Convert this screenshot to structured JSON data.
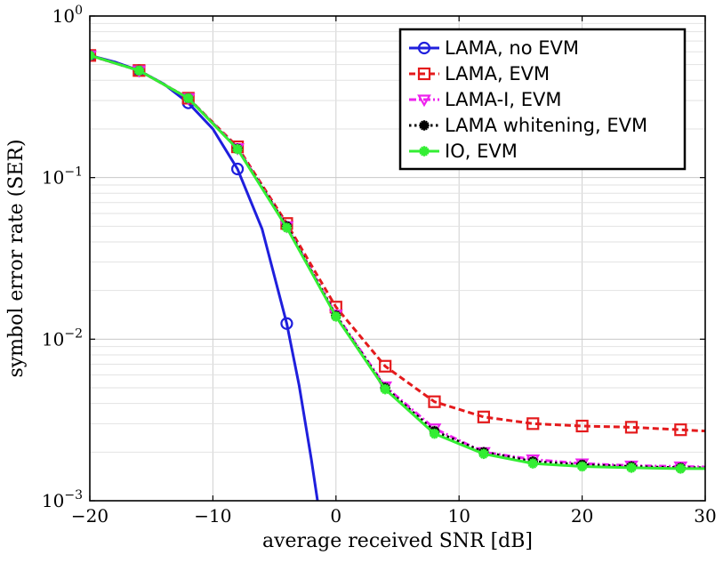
{
  "chart_data": {
    "type": "line",
    "title": "",
    "xlabel": "average received SNR [dB]",
    "ylabel": "symbol error rate (SER)",
    "xlim": [
      -20,
      30
    ],
    "ylim": [
      0.001,
      1
    ],
    "yscale": "log",
    "grid": true,
    "legend_position": "top-right",
    "x_ticks": [
      -20,
      -10,
      0,
      10,
      20,
      30
    ],
    "x_tick_labels": [
      "−20",
      "−10",
      "0",
      "10",
      "20",
      "30"
    ],
    "y_tick_labels": [
      {
        "base": "10",
        "exp": "0"
      },
      {
        "base": "10",
        "exp": "−1"
      },
      {
        "base": "10",
        "exp": "−2"
      },
      {
        "base": "10",
        "exp": "−3"
      }
    ],
    "series": [
      {
        "name": "LAMA, no EVM",
        "color": "#1f1fdd",
        "dash": "solid",
        "marker": "circle",
        "x": [
          -20,
          -18,
          -16,
          -14,
          -12,
          -10,
          -8,
          -6,
          -4,
          -3,
          -2,
          -1.5
        ],
        "y": [
          0.57,
          0.52,
          0.46,
          0.38,
          0.29,
          0.2,
          0.113,
          0.048,
          0.0125,
          0.0052,
          0.0018,
          0.001
        ],
        "marker_x": [
          -20,
          -16,
          -12,
          -8,
          -4
        ],
        "marker_y": [
          0.57,
          0.46,
          0.29,
          0.113,
          0.0125
        ]
      },
      {
        "name": "LAMA, EVM",
        "color": "#e41a1c",
        "dash": "dashed",
        "marker": "square",
        "x": [
          -20,
          -16,
          -12,
          -8,
          -4,
          0,
          4,
          8,
          12,
          16,
          20,
          24,
          28,
          30
        ],
        "y": [
          0.57,
          0.46,
          0.31,
          0.155,
          0.052,
          0.0158,
          0.0068,
          0.0041,
          0.0033,
          0.003,
          0.0029,
          0.00285,
          0.00275,
          0.0027
        ],
        "marker_x": [
          -20,
          -16,
          -12,
          -8,
          -4,
          0,
          4,
          8,
          12,
          16,
          20,
          24,
          28
        ],
        "marker_y": [
          0.57,
          0.46,
          0.31,
          0.155,
          0.052,
          0.0158,
          0.0068,
          0.0041,
          0.0033,
          0.003,
          0.0029,
          0.00285,
          0.00275
        ]
      },
      {
        "name": "LAMA-I, EVM",
        "color": "#ee22ee",
        "dash": "dashdot",
        "marker": "triangle-down",
        "x": [
          -20,
          -16,
          -12,
          -8,
          -4,
          0,
          4,
          8,
          12,
          16,
          20,
          24,
          28,
          30
        ],
        "y": [
          0.57,
          0.46,
          0.31,
          0.152,
          0.05,
          0.0142,
          0.0051,
          0.0028,
          0.002,
          0.0018,
          0.0017,
          0.00165,
          0.00163,
          0.00162
        ],
        "marker_x": [
          -20,
          -16,
          -12,
          -8,
          -4,
          0,
          4,
          8,
          12,
          16,
          20,
          24,
          28
        ],
        "marker_y": [
          0.57,
          0.46,
          0.31,
          0.152,
          0.05,
          0.0142,
          0.0051,
          0.0028,
          0.002,
          0.0018,
          0.0017,
          0.00165,
          0.00163
        ]
      },
      {
        "name": "LAMA whitening, EVM",
        "color": "#000000",
        "dash": "dotted",
        "marker": "star",
        "x": [
          -20,
          -16,
          -12,
          -8,
          -4,
          0,
          4,
          8,
          12,
          16,
          20,
          24,
          28,
          30
        ],
        "y": [
          0.57,
          0.46,
          0.31,
          0.151,
          0.05,
          0.014,
          0.005,
          0.0027,
          0.002,
          0.00175,
          0.00167,
          0.00163,
          0.0016,
          0.0016
        ],
        "marker_x": [
          -20,
          -16,
          -12,
          -8,
          -4,
          0,
          4,
          8,
          12,
          16,
          20,
          24,
          28
        ],
        "marker_y": [
          0.57,
          0.46,
          0.31,
          0.151,
          0.05,
          0.014,
          0.005,
          0.0027,
          0.002,
          0.00175,
          0.00167,
          0.00163,
          0.0016
        ]
      },
      {
        "name": "IO, EVM",
        "color": "#33ee33",
        "dash": "solid",
        "marker": "star",
        "x": [
          -20,
          -16,
          -12,
          -8,
          -4,
          0,
          4,
          8,
          12,
          16,
          20,
          24,
          28,
          30
        ],
        "y": [
          0.57,
          0.46,
          0.31,
          0.15,
          0.049,
          0.0138,
          0.0049,
          0.0026,
          0.00195,
          0.0017,
          0.00163,
          0.0016,
          0.00158,
          0.00158
        ],
        "marker_x": [
          -20,
          -16,
          -12,
          -8,
          -4,
          0,
          4,
          8,
          12,
          16,
          20,
          24,
          28
        ],
        "marker_y": [
          0.57,
          0.46,
          0.31,
          0.15,
          0.049,
          0.0138,
          0.0049,
          0.0026,
          0.00195,
          0.0017,
          0.00163,
          0.0016,
          0.00158
        ]
      }
    ]
  }
}
